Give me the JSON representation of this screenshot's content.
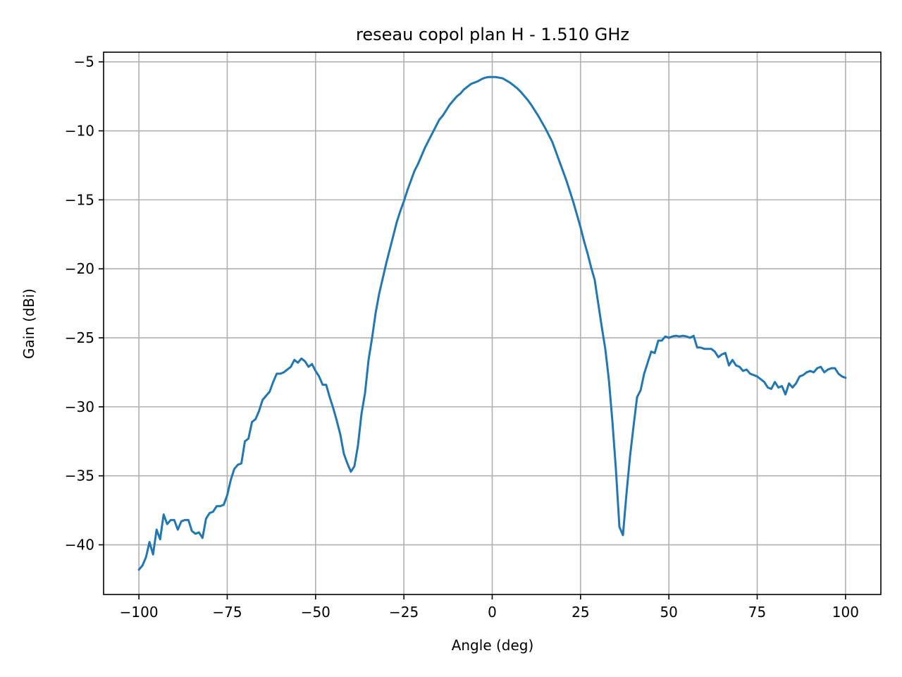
{
  "chart_data": {
    "type": "line",
    "title": "reseau copol plan H - 1.510 GHz",
    "xlabel": "Angle (deg)",
    "ylabel": "Gain (dBi)",
    "xlim": [
      -110,
      110
    ],
    "ylim": [
      -43.6,
      -4.3
    ],
    "xticks": [
      -100,
      -75,
      -50,
      -25,
      0,
      25,
      50,
      75,
      100
    ],
    "xtick_labels": [
      "−100",
      "−75",
      "−50",
      "−25",
      "0",
      "25",
      "50",
      "75",
      "100"
    ],
    "yticks": [
      -40,
      -35,
      -30,
      -25,
      -20,
      -15,
      -10,
      -5
    ],
    "ytick_labels": [
      "−40",
      "−35",
      "−30",
      "−25",
      "−20",
      "−15",
      "−10",
      "−5"
    ],
    "grid": true,
    "series": [
      {
        "color": "#1f77b4",
        "points": [
          [
            -100,
            -41.8
          ],
          [
            -99,
            -41.5
          ],
          [
            -98,
            -40.9
          ],
          [
            -97,
            -39.8
          ],
          [
            -96,
            -40.7
          ],
          [
            -95,
            -38.9
          ],
          [
            -94,
            -39.6
          ],
          [
            -93,
            -37.8
          ],
          [
            -92,
            -38.5
          ],
          [
            -91,
            -38.2
          ],
          [
            -90,
            -38.2
          ],
          [
            -89,
            -38.9
          ],
          [
            -88,
            -38.3
          ],
          [
            -87,
            -38.2
          ],
          [
            -86,
            -38.2
          ],
          [
            -85,
            -39.0
          ],
          [
            -84,
            -39.2
          ],
          [
            -83,
            -39.1
          ],
          [
            -82,
            -39.5
          ],
          [
            -81,
            -38.1
          ],
          [
            -80,
            -37.7
          ],
          [
            -79,
            -37.6
          ],
          [
            -78,
            -37.2
          ],
          [
            -77,
            -37.2
          ],
          [
            -76,
            -37.1
          ],
          [
            -75,
            -36.4
          ],
          [
            -74,
            -35.3
          ],
          [
            -73,
            -34.5
          ],
          [
            -72,
            -34.2
          ],
          [
            -71,
            -34.1
          ],
          [
            -70,
            -32.5
          ],
          [
            -69,
            -32.3
          ],
          [
            -68,
            -31.1
          ],
          [
            -67,
            -30.9
          ],
          [
            -66,
            -30.3
          ],
          [
            -65,
            -29.5
          ],
          [
            -64,
            -29.2
          ],
          [
            -63,
            -28.9
          ],
          [
            -62,
            -28.2
          ],
          [
            -61,
            -27.6
          ],
          [
            -60,
            -27.6
          ],
          [
            -59,
            -27.5
          ],
          [
            -58,
            -27.3
          ],
          [
            -57,
            -27.1
          ],
          [
            -56,
            -26.6
          ],
          [
            -55,
            -26.8
          ],
          [
            -54,
            -26.5
          ],
          [
            -53,
            -26.7
          ],
          [
            -52,
            -27.1
          ],
          [
            -51,
            -26.9
          ],
          [
            -50,
            -27.4
          ],
          [
            -49,
            -27.8
          ],
          [
            -48,
            -28.4
          ],
          [
            -47,
            -28.4
          ],
          [
            -46,
            -29.3
          ],
          [
            -45,
            -30.1
          ],
          [
            -44,
            -31.0
          ],
          [
            -43,
            -32.0
          ],
          [
            -42,
            -33.4
          ],
          [
            -41,
            -34.1
          ],
          [
            -40,
            -34.7
          ],
          [
            -39,
            -34.3
          ],
          [
            -38,
            -32.8
          ],
          [
            -37,
            -30.5
          ],
          [
            -36,
            -29.0
          ],
          [
            -35,
            -26.6
          ],
          [
            -34,
            -25.0
          ],
          [
            -33,
            -23.2
          ],
          [
            -32,
            -21.8
          ],
          [
            -31,
            -20.7
          ],
          [
            -30,
            -19.6
          ],
          [
            -29,
            -18.6
          ],
          [
            -28,
            -17.6
          ],
          [
            -27,
            -16.6
          ],
          [
            -26,
            -15.8
          ],
          [
            -25,
            -15.1
          ],
          [
            -24,
            -14.3
          ],
          [
            -23,
            -13.6
          ],
          [
            -22,
            -12.9
          ],
          [
            -21,
            -12.4
          ],
          [
            -20,
            -11.8
          ],
          [
            -19,
            -11.2
          ],
          [
            -18,
            -10.7
          ],
          [
            -17,
            -10.2
          ],
          [
            -16,
            -9.7
          ],
          [
            -15,
            -9.2
          ],
          [
            -14,
            -8.9
          ],
          [
            -13,
            -8.5
          ],
          [
            -12,
            -8.1
          ],
          [
            -11,
            -7.8
          ],
          [
            -10,
            -7.5
          ],
          [
            -9,
            -7.3
          ],
          [
            -8,
            -7.0
          ],
          [
            -7,
            -6.8
          ],
          [
            -6,
            -6.6
          ],
          [
            -5,
            -6.5
          ],
          [
            -4,
            -6.4
          ],
          [
            -3,
            -6.25
          ],
          [
            -2,
            -6.15
          ],
          [
            -1,
            -6.1
          ],
          [
            0,
            -6.1
          ],
          [
            1,
            -6.1
          ],
          [
            2,
            -6.15
          ],
          [
            3,
            -6.2
          ],
          [
            4,
            -6.35
          ],
          [
            5,
            -6.5
          ],
          [
            6,
            -6.7
          ],
          [
            7,
            -6.9
          ],
          [
            8,
            -7.15
          ],
          [
            9,
            -7.45
          ],
          [
            10,
            -7.75
          ],
          [
            11,
            -8.1
          ],
          [
            12,
            -8.5
          ],
          [
            13,
            -8.9
          ],
          [
            14,
            -9.35
          ],
          [
            15,
            -9.8
          ],
          [
            16,
            -10.3
          ],
          [
            17,
            -10.8
          ],
          [
            18,
            -11.5
          ],
          [
            19,
            -12.2
          ],
          [
            20,
            -12.9
          ],
          [
            21,
            -13.6
          ],
          [
            22,
            -14.4
          ],
          [
            23,
            -15.2
          ],
          [
            24,
            -16.1
          ],
          [
            25,
            -17.0
          ],
          [
            26,
            -18.0
          ],
          [
            27,
            -18.9
          ],
          [
            28,
            -19.9
          ],
          [
            29,
            -20.8
          ],
          [
            30,
            -22.5
          ],
          [
            31,
            -24.2
          ],
          [
            32,
            -25.8
          ],
          [
            33,
            -28.0
          ],
          [
            34,
            -31.0
          ],
          [
            35,
            -34.5
          ],
          [
            36,
            -38.7
          ],
          [
            37,
            -39.3
          ],
          [
            38,
            -36.3
          ],
          [
            39,
            -33.6
          ],
          [
            40,
            -31.4
          ],
          [
            41,
            -29.3
          ],
          [
            42,
            -28.8
          ],
          [
            43,
            -27.6
          ],
          [
            44,
            -26.8
          ],
          [
            45,
            -26.0
          ],
          [
            46,
            -26.1
          ],
          [
            47,
            -25.2
          ],
          [
            48,
            -25.2
          ],
          [
            49,
            -24.9
          ],
          [
            50,
            -25.0
          ],
          [
            51,
            -24.9
          ],
          [
            52,
            -24.85
          ],
          [
            53,
            -24.9
          ],
          [
            54,
            -24.85
          ],
          [
            55,
            -24.9
          ],
          [
            56,
            -25.0
          ],
          [
            57,
            -24.85
          ],
          [
            58,
            -25.7
          ],
          [
            59,
            -25.7
          ],
          [
            60,
            -25.8
          ],
          [
            61,
            -25.8
          ],
          [
            62,
            -25.8
          ],
          [
            63,
            -26.0
          ],
          [
            64,
            -26.4
          ],
          [
            65,
            -26.2
          ],
          [
            66,
            -26.1
          ],
          [
            67,
            -27.0
          ],
          [
            68,
            -26.6
          ],
          [
            69,
            -27.0
          ],
          [
            70,
            -27.1
          ],
          [
            71,
            -27.4
          ],
          [
            72,
            -27.3
          ],
          [
            73,
            -27.6
          ],
          [
            74,
            -27.7
          ],
          [
            75,
            -27.8
          ],
          [
            76,
            -28.0
          ],
          [
            77,
            -28.2
          ],
          [
            78,
            -28.6
          ],
          [
            79,
            -28.7
          ],
          [
            80,
            -28.2
          ],
          [
            81,
            -28.6
          ],
          [
            82,
            -28.5
          ],
          [
            83,
            -29.1
          ],
          [
            84,
            -28.3
          ],
          [
            85,
            -28.6
          ],
          [
            86,
            -28.3
          ],
          [
            87,
            -27.8
          ],
          [
            88,
            -27.7
          ],
          [
            89,
            -27.5
          ],
          [
            90,
            -27.4
          ],
          [
            91,
            -27.5
          ],
          [
            92,
            -27.2
          ],
          [
            93,
            -27.1
          ],
          [
            94,
            -27.5
          ],
          [
            95,
            -27.3
          ],
          [
            96,
            -27.2
          ],
          [
            97,
            -27.2
          ],
          [
            98,
            -27.6
          ],
          [
            99,
            -27.8
          ],
          [
            100,
            -27.9
          ]
        ]
      }
    ]
  }
}
